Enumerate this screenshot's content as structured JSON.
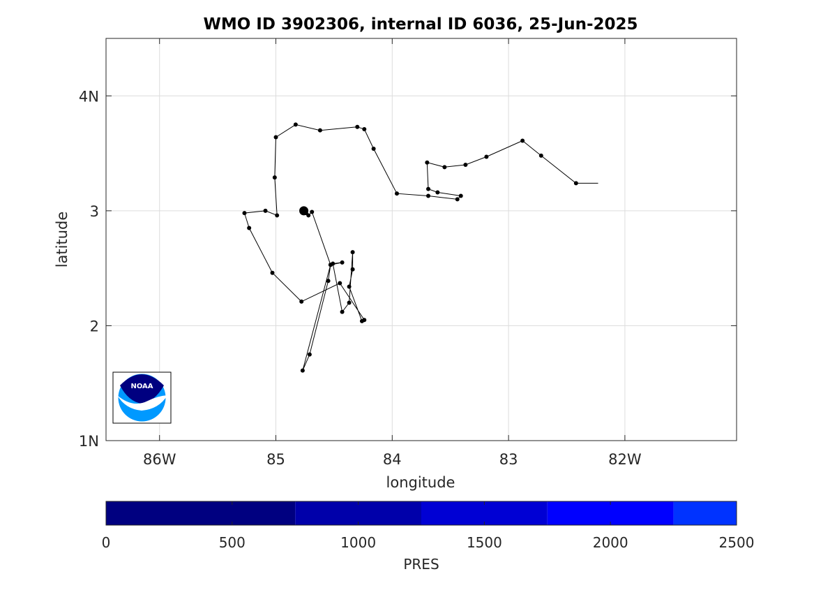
{
  "chart_data": {
    "type": "line",
    "title": "WMO ID 3902306, internal ID 6036, 25-Jun-2025",
    "xlabel": "longitude",
    "ylabel": "latitude",
    "x_axis": {
      "min": -86.46,
      "max": -81.04,
      "ticks": [
        -86,
        -85,
        -84,
        -83,
        -82
      ],
      "tick_labels": [
        "86W",
        "85",
        "84",
        "83",
        "82W"
      ]
    },
    "y_axis": {
      "min": 1.0,
      "max": 4.5,
      "ticks": [
        1,
        2,
        3,
        4
      ],
      "tick_labels": [
        "1N",
        "2",
        "3",
        "4N"
      ]
    },
    "grid": true,
    "series": [
      {
        "line_color": "#000000",
        "points": [
          [
            -82.23,
            3.24
          ],
          [
            -82.42,
            3.24
          ],
          [
            -82.72,
            3.48
          ],
          [
            -82.88,
            3.61
          ],
          [
            -83.19,
            3.47
          ],
          [
            -83.37,
            3.4
          ],
          [
            -83.55,
            3.38
          ],
          [
            -83.7,
            3.42
          ],
          [
            -83.69,
            3.19
          ],
          [
            -83.61,
            3.16
          ],
          [
            -83.41,
            3.13
          ],
          [
            -83.44,
            3.1
          ],
          [
            -83.69,
            3.13
          ],
          [
            -83.96,
            3.15
          ],
          [
            -84.16,
            3.54
          ],
          [
            -84.24,
            3.71
          ],
          [
            -84.3,
            3.73
          ],
          [
            -84.62,
            3.7
          ],
          [
            -84.83,
            3.75
          ],
          [
            -85.0,
            3.64
          ],
          [
            -85.01,
            3.29
          ],
          [
            -84.99,
            2.96
          ],
          [
            -85.09,
            3.0
          ],
          [
            -85.27,
            2.98
          ],
          [
            -85.23,
            2.85
          ],
          [
            -85.03,
            2.46
          ],
          [
            -84.78,
            2.21
          ],
          [
            -84.45,
            2.37
          ],
          [
            -84.24,
            2.05
          ],
          [
            -84.26,
            2.04
          ],
          [
            -84.37,
            2.34
          ],
          [
            -84.34,
            2.49
          ],
          [
            -84.34,
            2.64
          ],
          [
            -84.37,
            2.2
          ],
          [
            -84.43,
            2.12
          ],
          [
            -84.51,
            2.54
          ],
          [
            -84.43,
            2.55
          ],
          [
            -84.53,
            2.53
          ],
          [
            -84.55,
            2.39
          ],
          [
            -84.71,
            1.75
          ],
          [
            -84.77,
            1.61
          ],
          [
            -84.53,
            2.53
          ],
          [
            -84.69,
            2.99
          ],
          [
            -84.72,
            2.96
          ],
          [
            -84.74,
            2.98
          ],
          [
            -84.76,
            3.0
          ]
        ],
        "final_position": [
          -84.76,
          3.0
        ]
      }
    ],
    "colorbar": {
      "label": "PRES",
      "min": 0,
      "max": 2500,
      "ticks": [
        0,
        500,
        1000,
        1500,
        2000,
        2500
      ],
      "bins": [
        {
          "from": 0,
          "to": 750,
          "color": "#000080"
        },
        {
          "from": 750,
          "to": 1250,
          "color": "#0000aa"
        },
        {
          "from": 1250,
          "to": 1750,
          "color": "#0000d4"
        },
        {
          "from": 1750,
          "to": 2250,
          "color": "#0000ff"
        },
        {
          "from": 2250,
          "to": 2500,
          "color": "#0033ff"
        }
      ]
    },
    "logo": {
      "text": "NOAA",
      "icon": "noaa-logo-icon"
    }
  }
}
